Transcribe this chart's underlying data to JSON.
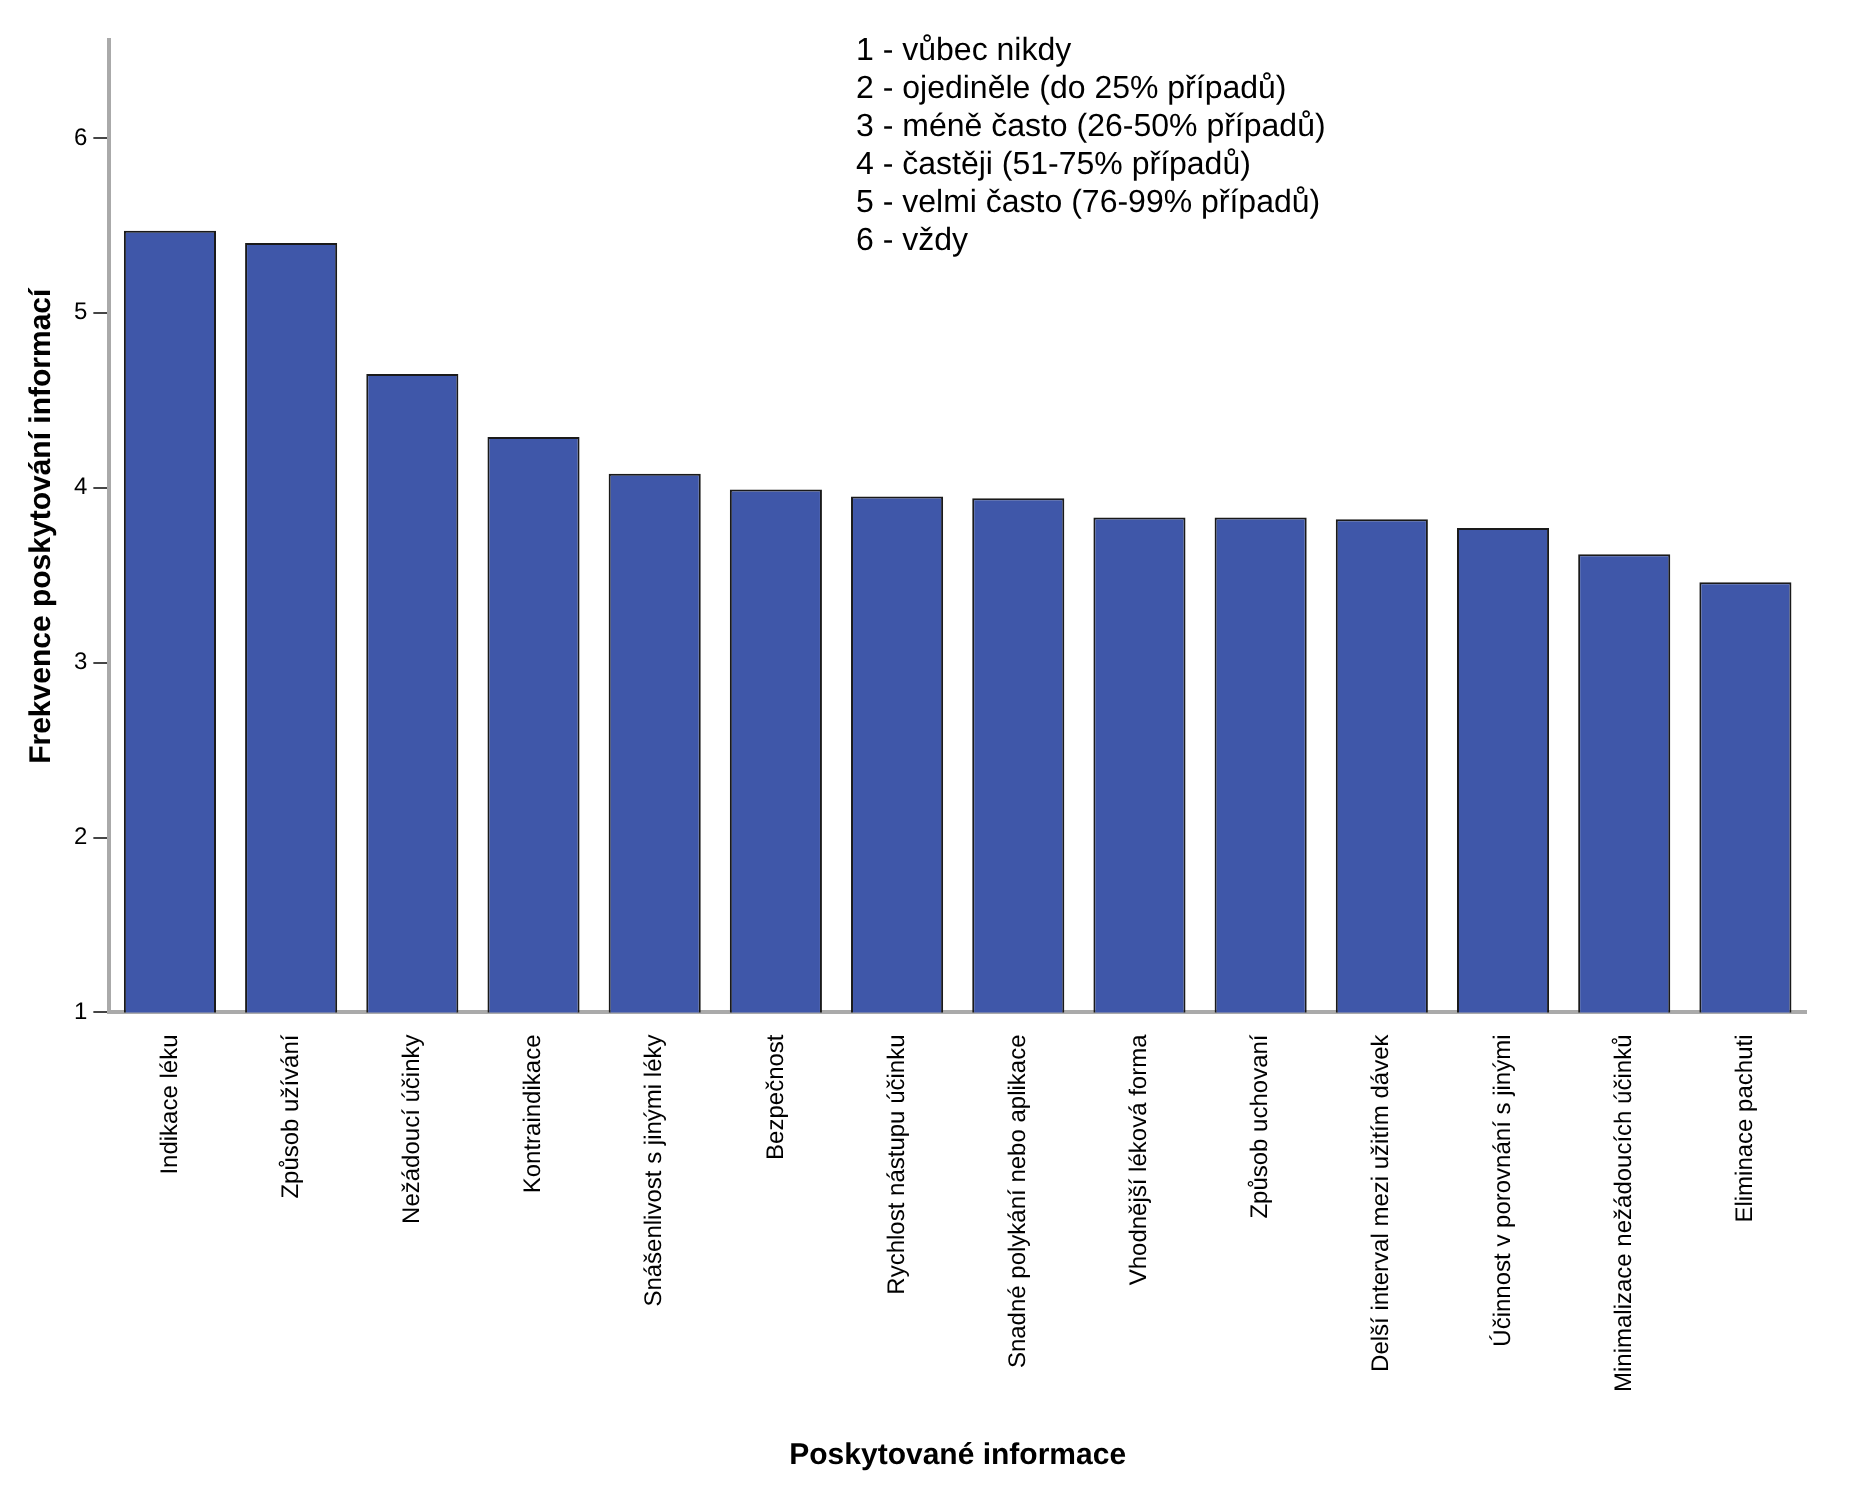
{
  "chart_data": {
    "type": "bar",
    "xlabel": "Poskytované informace",
    "ylabel": "Frekvence poskytování informací",
    "categories": [
      "Indikace léku",
      "Způsob užívání",
      "Nežádoucí účinky",
      "Kontraindikace",
      "Snášenlivost s jinými léky",
      "Bezpečnost",
      "Rychlost nástupu účinku",
      "Snadné polykání nebo aplikace",
      "Vhodnější léková forma",
      "Způsob uchovaní",
      "Delší interval mezi užitím dávek",
      "Účinnost v porovnání s jinými",
      "Minimalizace nežádoucích účinků",
      "Eliminace pachuti"
    ],
    "values": [
      5.47,
      5.4,
      4.65,
      4.29,
      4.08,
      3.99,
      3.95,
      3.94,
      3.83,
      3.83,
      3.82,
      3.77,
      3.62,
      3.46
    ],
    "color": "#3f57a9",
    "ylim": [
      1,
      6.56
    ],
    "yticks": [
      1,
      2,
      3,
      4,
      5,
      6
    ],
    "annotations": [
      "1 - vůbec nikdy",
      "2 - ojediněle (do 25% případů)",
      "3 - méně často (26-50% případů)",
      "4 - častěji (51-75% případů)",
      "5 - velmi často (76-99% případů)",
      "6 - vždy"
    ]
  }
}
